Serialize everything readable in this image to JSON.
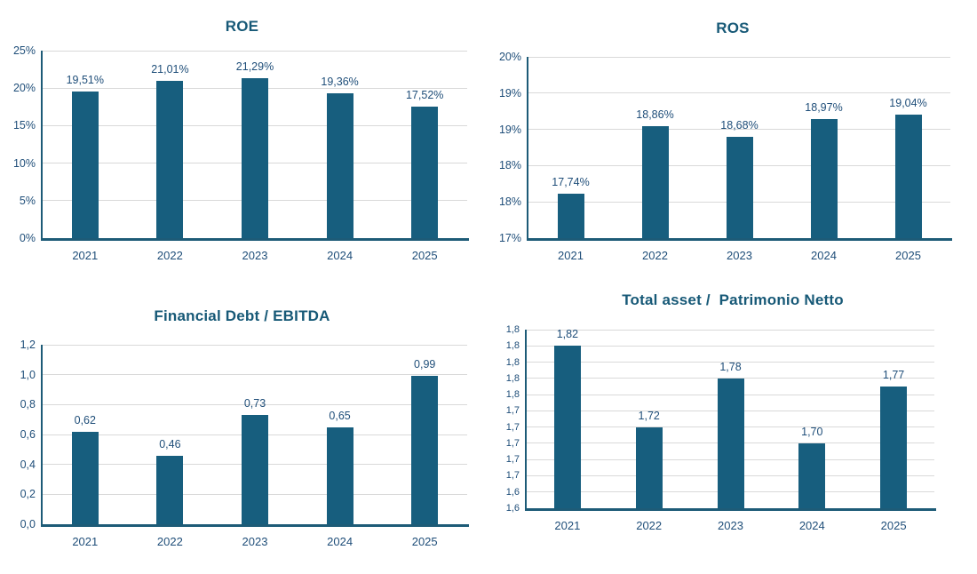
{
  "colors": {
    "bar": "#175E7E",
    "title": "#175977",
    "label": "#1F4E79",
    "axis": "#1D5B77",
    "grid": "#D9D9D9",
    "background": "#FFFFFF"
  },
  "chart_data": [
    {
      "type": "bar",
      "title": "ROE",
      "categories": [
        "2021",
        "2022",
        "2023",
        "2024",
        "2025"
      ],
      "values": [
        19.51,
        21.01,
        21.29,
        19.36,
        17.52
      ],
      "data_labels": [
        "19,51%",
        "21,01%",
        "21,29%",
        "19,36%",
        "17,52%"
      ],
      "xlabel": "",
      "ylabel": "",
      "ylim": [
        0,
        25
      ],
      "ytick_values": [
        0,
        5,
        10,
        15,
        20,
        25
      ],
      "ytick_labels": [
        "0%",
        "5%",
        "10%",
        "15%",
        "20%",
        "25%"
      ],
      "grid": true,
      "legend": "none"
    },
    {
      "type": "bar",
      "title": "ROS",
      "categories": [
        "2021",
        "2022",
        "2023",
        "2024",
        "2025"
      ],
      "values": [
        17.74,
        18.86,
        18.68,
        18.97,
        19.04
      ],
      "data_labels": [
        "17,74%",
        "18,86%",
        "18,68%",
        "18,97%",
        "19,04%"
      ],
      "xlabel": "",
      "ylabel": "",
      "ylim": [
        17,
        20
      ],
      "ytick_values": [
        17,
        17.6,
        18.2,
        18.8,
        19.4,
        20
      ],
      "ytick_labels": [
        "17%",
        "18%",
        "18%",
        "19%",
        "19%",
        "20%"
      ],
      "grid": true,
      "legend": "none"
    },
    {
      "type": "bar",
      "title": "Financial Debt / EBITDA",
      "categories": [
        "2021",
        "2022",
        "2023",
        "2024",
        "2025"
      ],
      "values": [
        0.62,
        0.46,
        0.73,
        0.65,
        0.99
      ],
      "data_labels": [
        "0,62",
        "0,46",
        "0,73",
        "0,65",
        "0,99"
      ],
      "xlabel": "",
      "ylabel": "",
      "ylim": [
        0,
        1.2
      ],
      "ytick_values": [
        0,
        0.2,
        0.4,
        0.6,
        0.8,
        1.0,
        1.2
      ],
      "ytick_labels": [
        "0,0",
        "0,2",
        "0,4",
        "0,6",
        "0,8",
        "1,0",
        "1,2"
      ],
      "grid": true,
      "legend": "none"
    },
    {
      "type": "bar",
      "title": "Total asset /  Patrimonio Netto",
      "categories": [
        "2021",
        "2022",
        "2023",
        "2024",
        "2025"
      ],
      "values": [
        1.82,
        1.72,
        1.78,
        1.7,
        1.77
      ],
      "data_labels": [
        "1,82",
        "1,72",
        "1,78",
        "1,70",
        "1,77"
      ],
      "xlabel": "",
      "ylabel": "",
      "ylim": [
        1.62,
        1.84
      ],
      "ytick_values": [
        1.62,
        1.64,
        1.66,
        1.68,
        1.7,
        1.72,
        1.74,
        1.76,
        1.78,
        1.8,
        1.82,
        1.84
      ],
      "ytick_labels": [
        "1,6",
        "1,6",
        "1,7",
        "1,7",
        "1,7",
        "1,7",
        "1,7",
        "1,8",
        "1,8",
        "1,8",
        "1,8",
        "1,8"
      ],
      "grid": true,
      "legend": "none"
    }
  ]
}
